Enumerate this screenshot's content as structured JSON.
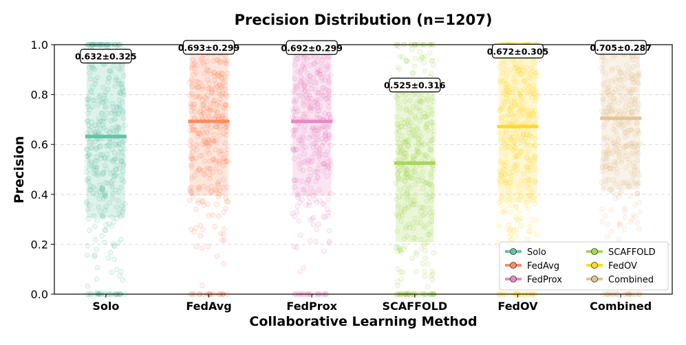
{
  "chart_data": {
    "type": "strip",
    "title": "Precision Distribution (n=1207)",
    "xlabel": "Collaborative Learning Method",
    "ylabel": "Precision",
    "ylim": [
      0,
      1
    ],
    "yticks": [
      "0.0",
      "0.2",
      "0.4",
      "0.6",
      "0.8",
      "1.0"
    ],
    "grid": "y-dashed",
    "n_per_group": 1207,
    "categories": [
      "Solo",
      "FedAvg",
      "FedProx",
      "SCAFFOLD",
      "FedOV",
      "Combined"
    ],
    "means": [
      0.632,
      0.693,
      0.692,
      0.525,
      0.672,
      0.705
    ],
    "stds": [
      0.325,
      0.299,
      0.299,
      0.316,
      0.305,
      0.287
    ],
    "mean_labels": [
      "0.632±0.325",
      "0.693±0.299",
      "0.692±0.299",
      "0.525±0.316",
      "0.672±0.305",
      "0.705±0.287"
    ],
    "colors": [
      "#66c2a5",
      "#fc8d62",
      "#e78ac3",
      "#a6d854",
      "#ffd92f",
      "#e5c494"
    ],
    "legend": {
      "position": "lower-right",
      "entries": [
        "Solo",
        "FedAvg",
        "FedProx",
        "SCAFFOLD",
        "FedOV",
        "Combined"
      ]
    }
  }
}
